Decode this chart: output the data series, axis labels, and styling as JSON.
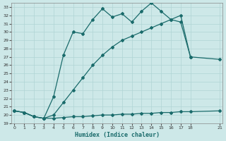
{
  "xlabel": "Humidex (Indice chaleur)",
  "background_color": "#cde8e8",
  "grid_color": "#b0d4d4",
  "line_color": "#1a6b6b",
  "xlim": [
    -0.3,
    21.3
  ],
  "ylim": [
    19,
    33.5
  ],
  "xticks": [
    0,
    1,
    2,
    3,
    4,
    5,
    6,
    7,
    8,
    9,
    10,
    11,
    12,
    13,
    14,
    15,
    16,
    17,
    18,
    21
  ],
  "yticks": [
    19,
    20,
    21,
    22,
    23,
    24,
    25,
    26,
    27,
    28,
    29,
    30,
    31,
    32,
    33
  ],
  "series_upper_x": [
    0,
    1,
    2,
    3,
    4,
    5,
    6,
    7,
    8,
    9,
    10,
    11,
    12,
    13,
    14,
    15,
    16,
    17,
    18
  ],
  "series_upper_y": [
    20.5,
    20.3,
    19.8,
    19.6,
    22.2,
    27.2,
    30.0,
    29.8,
    31.5,
    32.8,
    31.8,
    32.2,
    31.2,
    32.5,
    33.5,
    32.5,
    31.5,
    31.2,
    27.0
  ],
  "series_diag_x": [
    0,
    1,
    2,
    3,
    4,
    5,
    6,
    7,
    8,
    9,
    10,
    11,
    12,
    13,
    14,
    15,
    16,
    17,
    18,
    21
  ],
  "series_diag_y": [
    20.5,
    20.3,
    19.8,
    19.6,
    20.0,
    21.5,
    23.0,
    24.5,
    26.0,
    27.2,
    28.2,
    29.0,
    29.5,
    30.0,
    30.5,
    31.0,
    31.5,
    32.0,
    27.0,
    26.7
  ],
  "series_flat_x": [
    0,
    1,
    2,
    3,
    4,
    5,
    6,
    7,
    8,
    9,
    10,
    11,
    12,
    13,
    14,
    15,
    16,
    17,
    18,
    21
  ],
  "series_flat_y": [
    20.5,
    20.3,
    19.8,
    19.6,
    19.6,
    19.7,
    19.8,
    19.8,
    19.9,
    20.0,
    20.0,
    20.1,
    20.1,
    20.2,
    20.2,
    20.3,
    20.3,
    20.4,
    20.4,
    20.5
  ]
}
